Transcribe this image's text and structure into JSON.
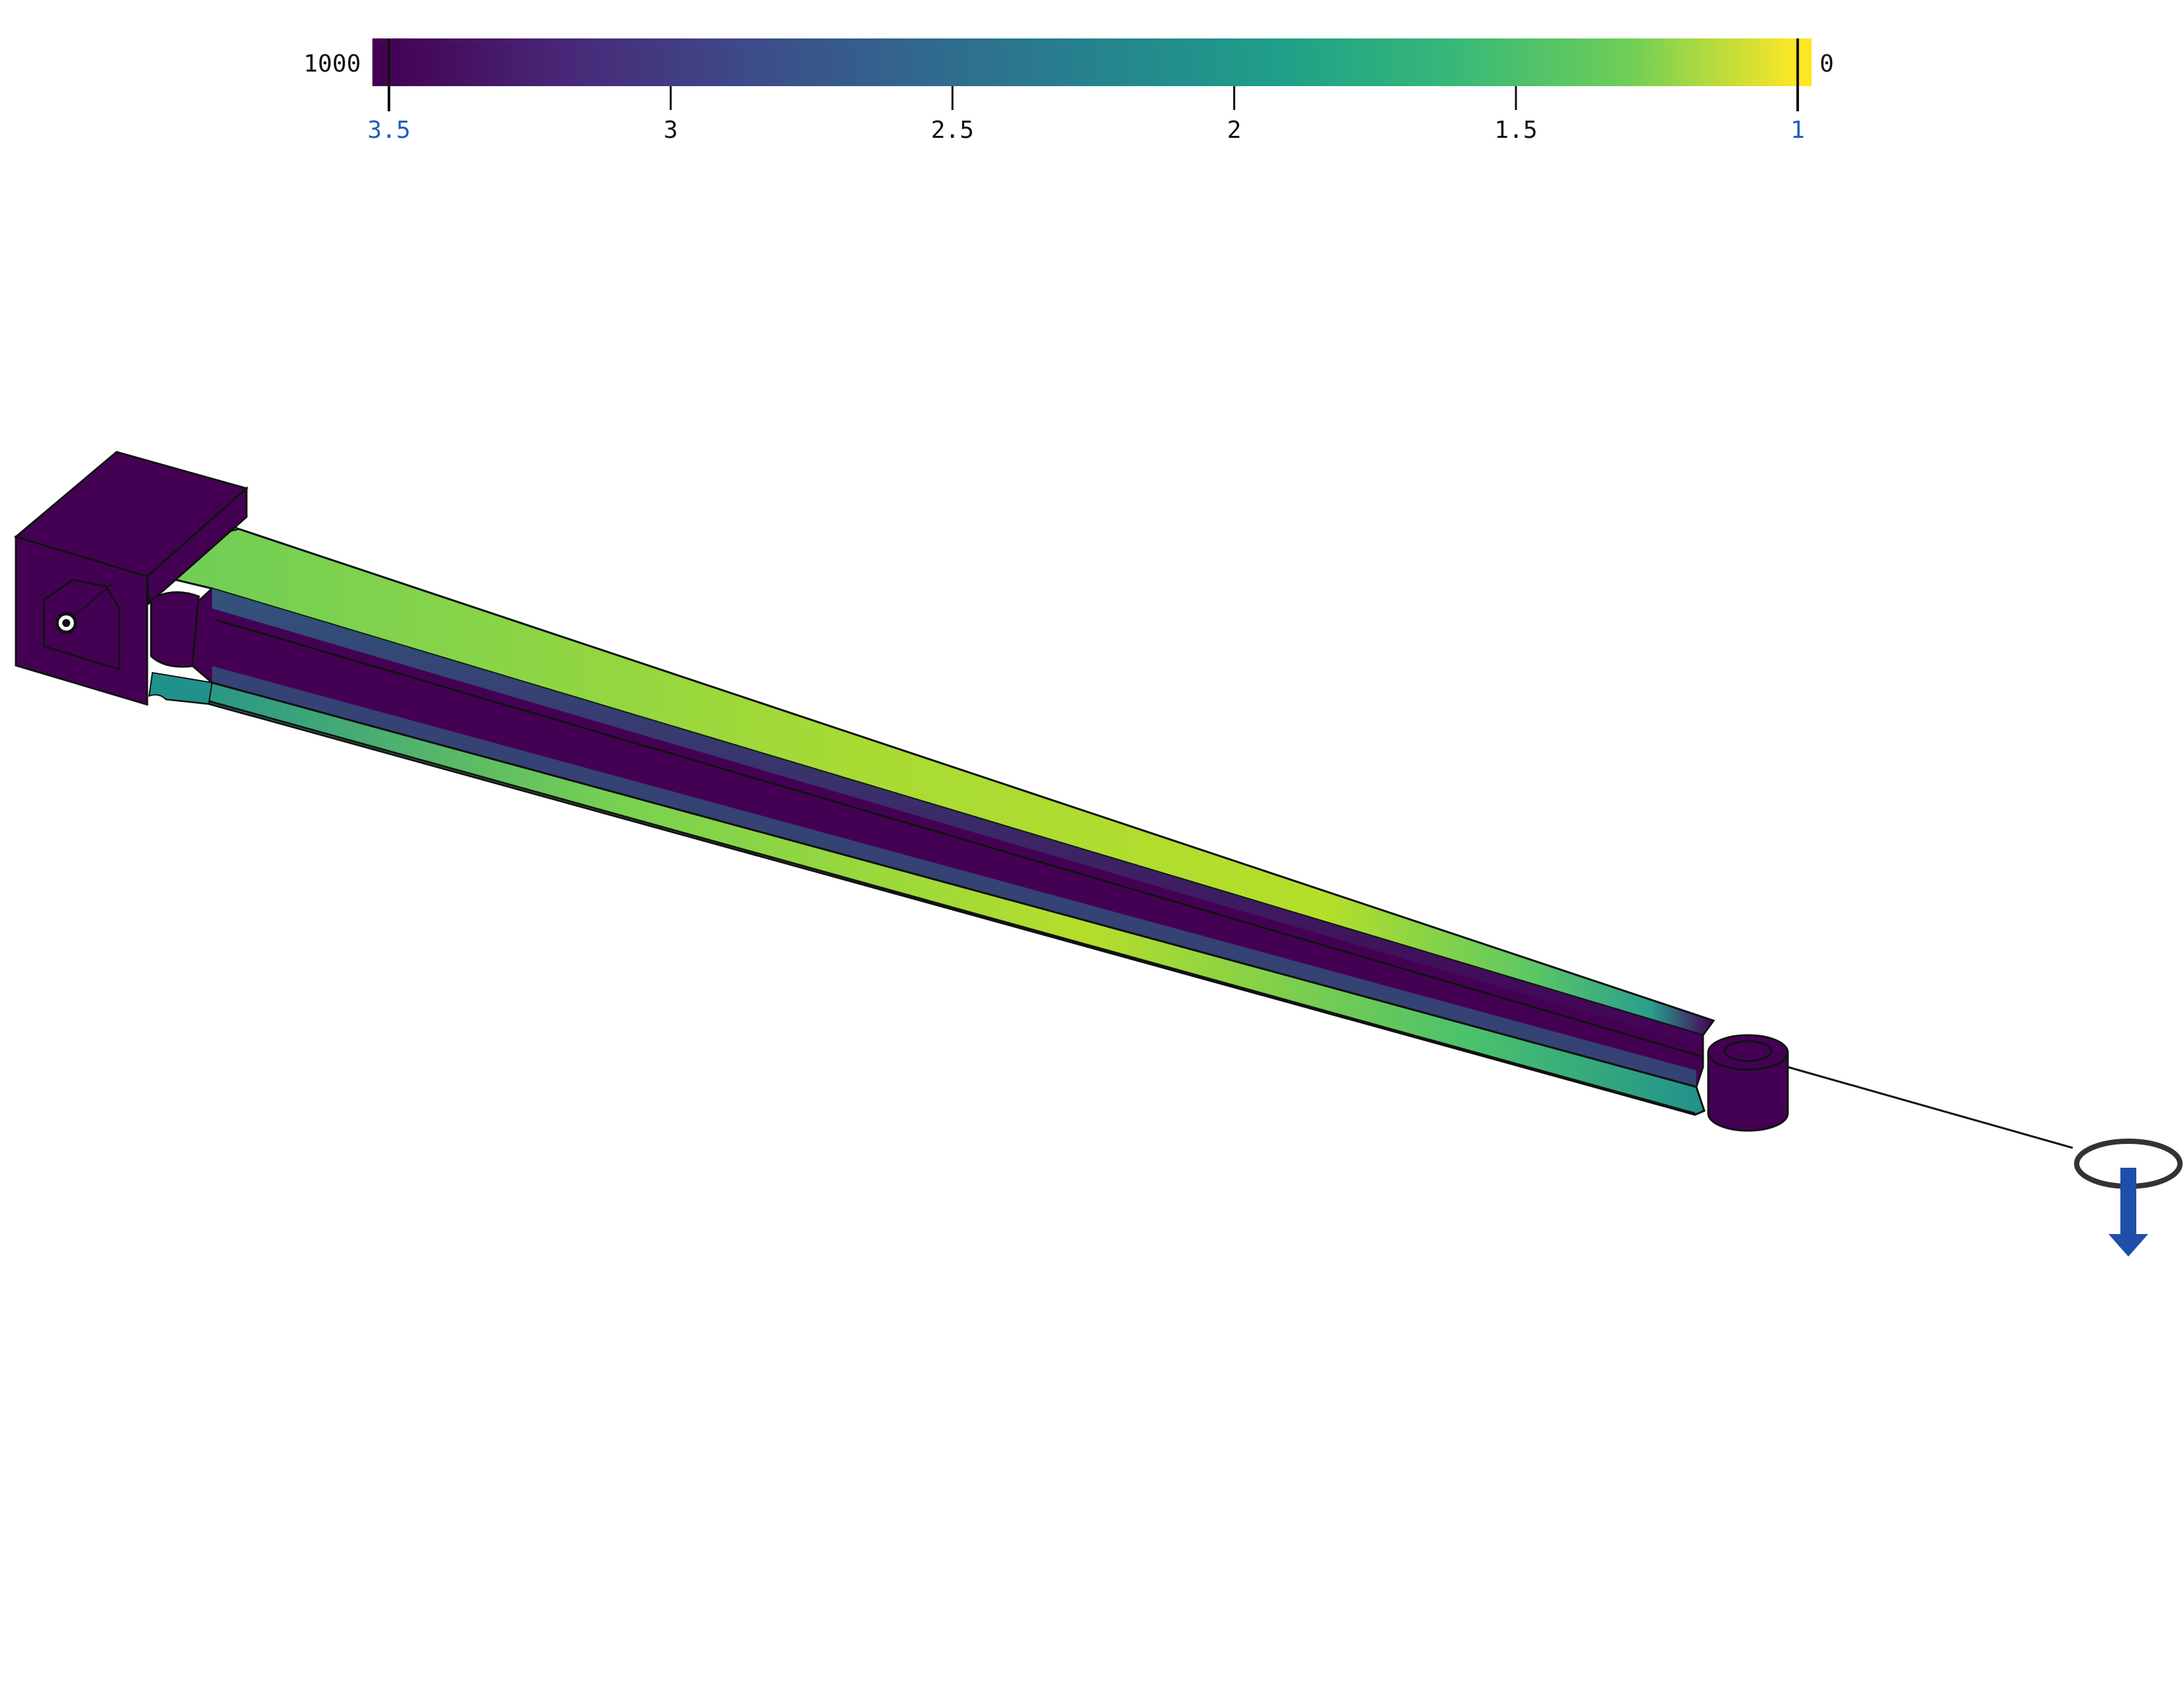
{
  "colorbar": {
    "left_value_label": "1000",
    "right_value_label": "0",
    "ticks": [
      {
        "label": "3.5",
        "value": 3.5,
        "endpoint": true
      },
      {
        "label": "3",
        "value": 3.0,
        "endpoint": false
      },
      {
        "label": "2.5",
        "value": 2.5,
        "endpoint": false
      },
      {
        "label": "2",
        "value": 2.0,
        "endpoint": false
      },
      {
        "label": "1.5",
        "value": 1.5,
        "endpoint": false
      },
      {
        "label": "1",
        "value": 1.0,
        "endpoint": true
      }
    ],
    "range_min": 1.0,
    "range_max": 3.5,
    "colormap": "viridis",
    "colors": {
      "low": "#fde725",
      "mid": "#21918c",
      "high": "#440154",
      "endpoint_label": "#1f5fbf"
    }
  },
  "scene": {
    "model": "tapered-arm-with-mount-block-and-eye",
    "colors": {
      "solid": "#440154",
      "face_green": "#7ad151",
      "face_yellow": "#b5de2b",
      "face_teal": "#2a9d8f",
      "edges": "#111111",
      "load_arrow": "#1f4fa8"
    },
    "icons": [
      "fixed-support-icon",
      "load-arrow-icon",
      "load-handle-ring-icon"
    ]
  }
}
